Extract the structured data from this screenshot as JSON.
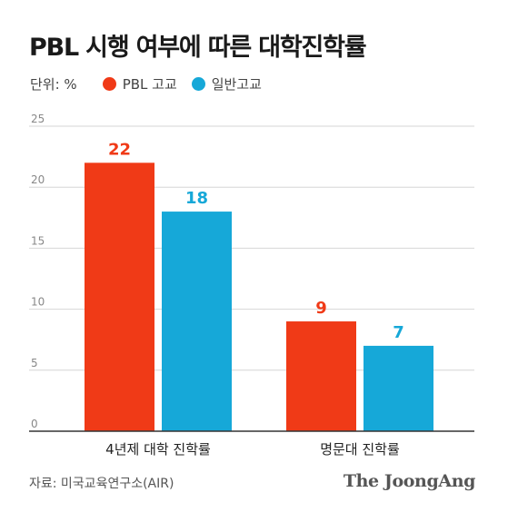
{
  "title": "PBL 시행 여부에 따른 대학진학률",
  "unit_label": "단위: %",
  "legend": [
    {
      "label": "PBL 고교",
      "color": "#f03a17"
    },
    {
      "label": "일반고교",
      "color": "#16a8d8"
    }
  ],
  "source": "자료: 미국교육연구소(AIR)",
  "logo": "The JoongAng",
  "chart_data": {
    "type": "bar",
    "categories": [
      "4년제 대학 진학률",
      "명문대 진학률"
    ],
    "series": [
      {
        "name": "PBL 고교",
        "values": [
          22,
          9
        ],
        "color": "#f03a17"
      },
      {
        "name": "일반고교",
        "values": [
          18,
          7
        ],
        "color": "#16a8d8"
      }
    ],
    "ylim": [
      0,
      25
    ],
    "yticks": [
      0,
      5,
      10,
      15,
      20,
      25
    ],
    "grid": true,
    "legend_position": "top-left"
  }
}
